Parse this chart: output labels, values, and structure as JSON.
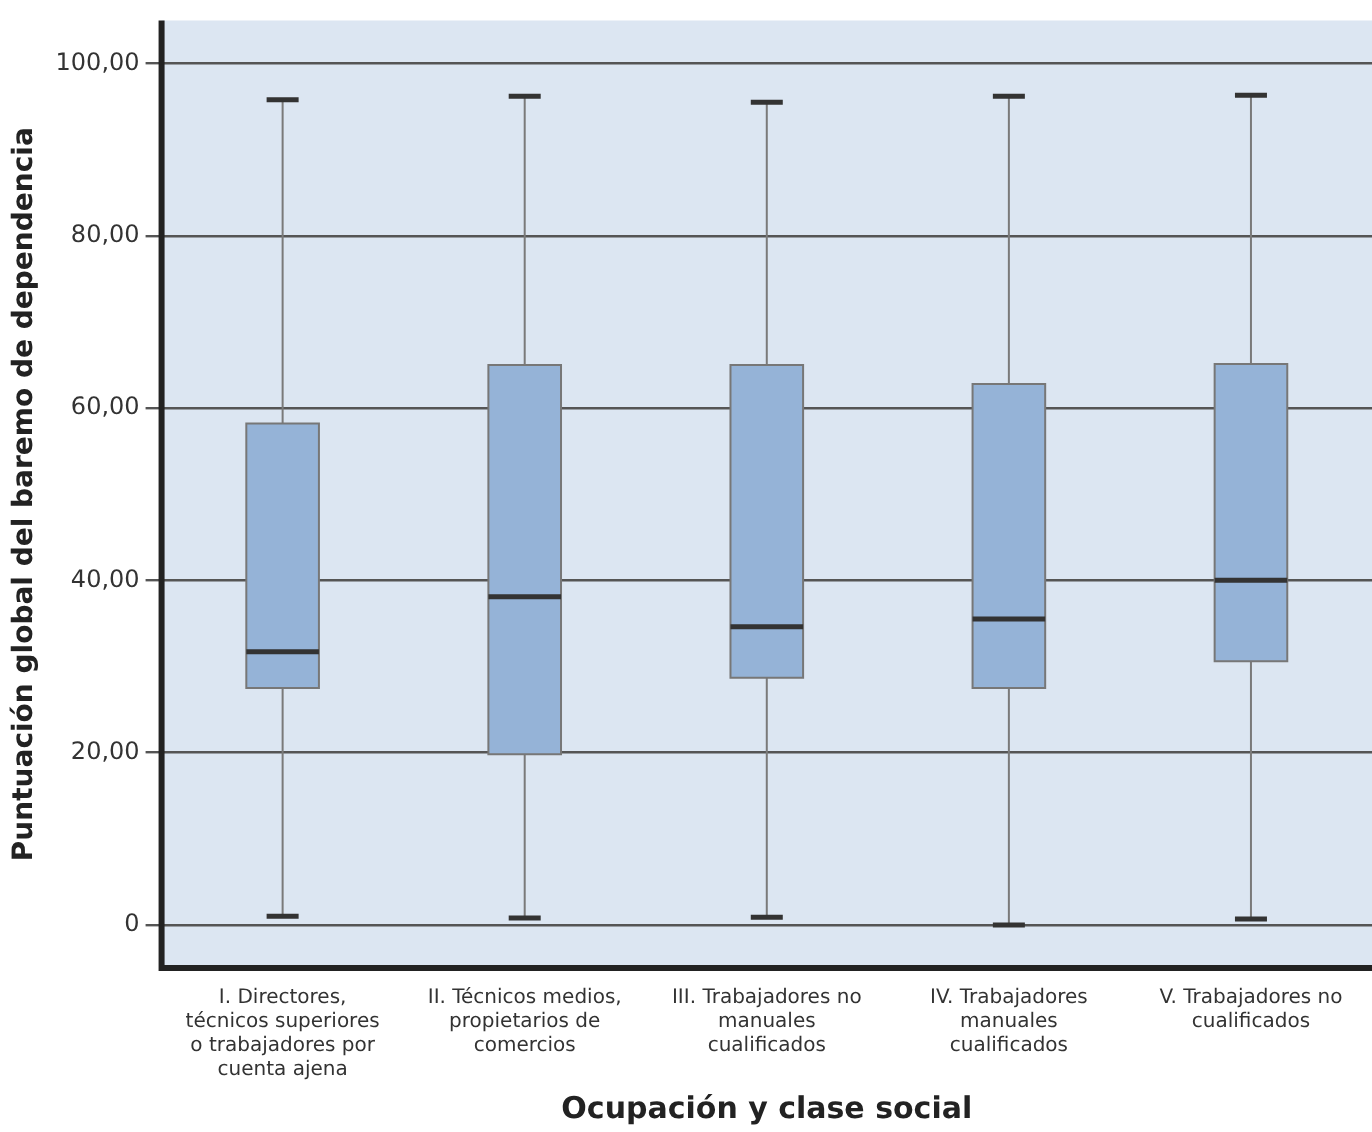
{
  "chart_data": {
    "type": "box",
    "xlabel": "Ocupación y clase social",
    "ylabel": "Puntuación global del baremo de dependencia",
    "categories": [
      "I. Directores, técnicos superiores o trabajadores por cuenta ajena",
      "II. Técnicos medios, propietarios de comercios",
      "III. Trabajadores no manuales cualificados",
      "IV. Trabajadores manuales cualificados",
      "V. Trabajadores no cualificados"
    ],
    "color": "#95b3d7",
    "boxes": [
      {
        "low": 1.0,
        "q1": 27.5,
        "median": 31.7,
        "q3": 58.2,
        "high": 95.8
      },
      {
        "low": 0.8,
        "q1": 19.8,
        "median": 38.1,
        "q3": 65.0,
        "high": 96.2
      },
      {
        "low": 0.9,
        "q1": 28.7,
        "median": 34.6,
        "q3": 65.0,
        "high": 95.5
      },
      {
        "low": 0,
        "q1": 27.5,
        "median": 35.5,
        "q3": 62.8,
        "high": 96.2
      },
      {
        "low": 0.7,
        "q1": 30.6,
        "median": 40.0,
        "q3": 65.1,
        "high": 96.3
      }
    ],
    "ylim": [
      -5,
      105
    ],
    "yticks": [
      {
        "value": 0,
        "label": "0"
      },
      {
        "value": 20,
        "label": "20,00"
      },
      {
        "value": 40,
        "label": "40,00"
      },
      {
        "value": 60,
        "label": "60,00"
      },
      {
        "value": 80,
        "label": "80,00"
      },
      {
        "value": 100,
        "label": "100,00"
      }
    ],
    "grid": "y"
  }
}
